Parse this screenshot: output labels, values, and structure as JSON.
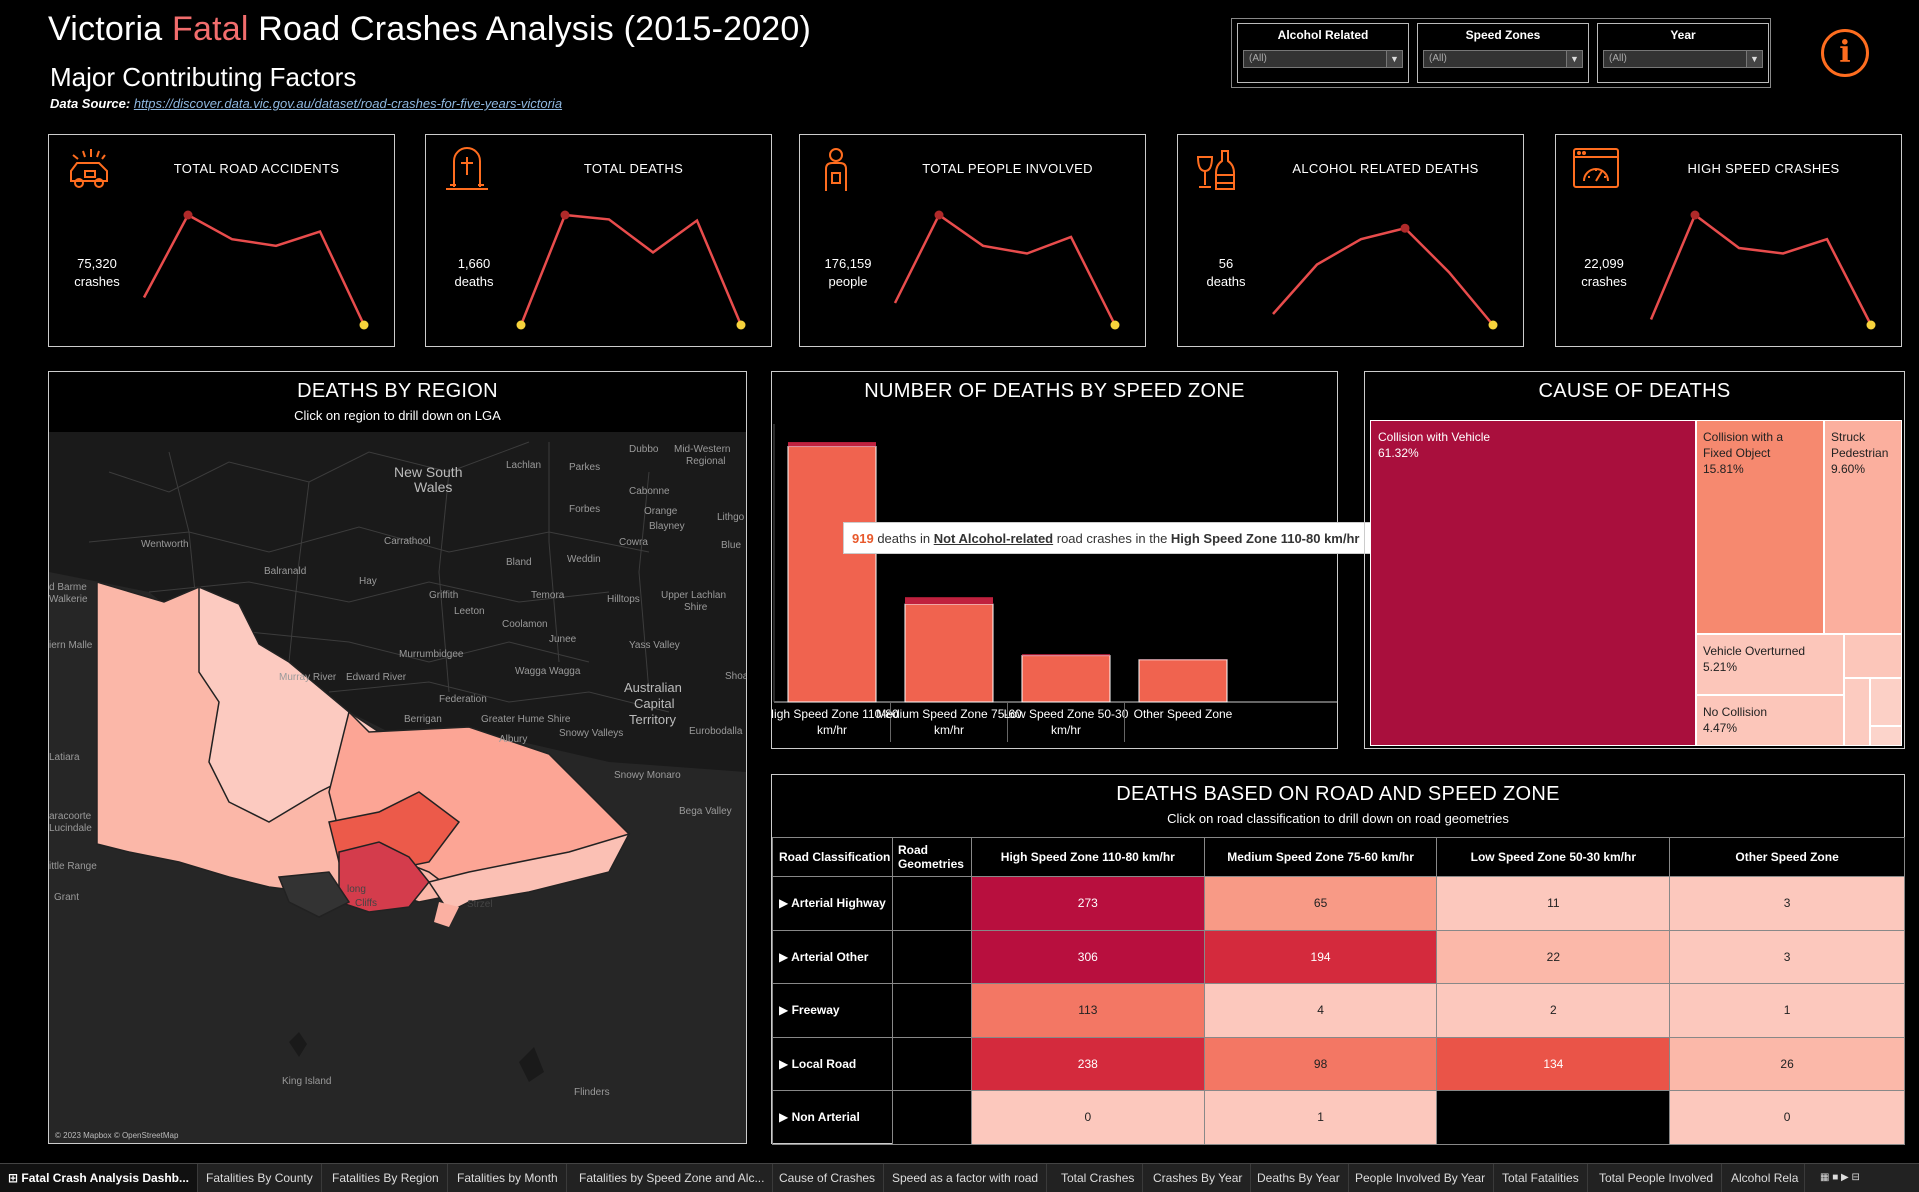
{
  "header": {
    "title_pre": "Victoria ",
    "title_accent": "Fatal",
    "title_post": " Road Crashes Analysis (2015-2020)",
    "subtitle": "Major Contributing Factors",
    "source_label": "Data Source:",
    "source_url": "https://discover.data.vic.gov.au/dataset/road-crashes-for-five-years-victoria"
  },
  "filters": [
    {
      "label": "Alcohol Related",
      "value": "(All)"
    },
    {
      "label": "Speed Zones",
      "value": "(All)"
    },
    {
      "label": "Year",
      "value": "(All)"
    }
  ],
  "info_icon": "i",
  "colors": {
    "accent": "#ff6d1f",
    "line": "#e84c4c",
    "endpoint": "#f7d33c",
    "dark_red": "#a90f3d",
    "mid_red": "#f0634f",
    "light_red": "#fbb0a2"
  },
  "kpis": [
    {
      "title": "TOTAL ROAD ACCIDENTS",
      "value": "75,320",
      "unit": "crashes",
      "icon": "car-crash-icon",
      "trend": [
        0.25,
        1.0,
        0.78,
        0.72,
        0.85,
        0.0
      ]
    },
    {
      "title": "TOTAL DEATHS",
      "value": "1,660",
      "unit": "deaths",
      "icon": "grave-icon",
      "trend": [
        0.0,
        1.0,
        0.96,
        0.66,
        0.95,
        0.0
      ]
    },
    {
      "title": "TOTAL PEOPLE INVOLVED",
      "value": "176,159",
      "unit": "people",
      "icon": "person-icon",
      "trend": [
        0.2,
        1.0,
        0.72,
        0.65,
        0.8,
        0.0
      ]
    },
    {
      "title": "ALCOHOL RELATED DEATHS",
      "value": "56",
      "unit": "deaths",
      "icon": "alcohol-icon",
      "trend": [
        0.1,
        0.55,
        0.78,
        0.88,
        0.48,
        0.0
      ]
    },
    {
      "title": "HIGH SPEED CRASHES",
      "value": "22,099",
      "unit": "crashes",
      "icon": "speedometer-icon",
      "trend": [
        0.05,
        1.0,
        0.7,
        0.65,
        0.78,
        0.0
      ]
    }
  ],
  "map": {
    "title": "DEATHS BY REGION",
    "subtitle": "Click on region to drill down on LGA",
    "credit": "© 2023 Mapbox © OpenStreetMap",
    "labels": [
      {
        "text": "New South"
      },
      {
        "text": "Wales"
      },
      {
        "text": "Dubbo"
      },
      {
        "text": "Mid-Western"
      },
      {
        "text": "Regional"
      },
      {
        "text": "Lachlan"
      },
      {
        "text": "Parkes"
      },
      {
        "text": "Cabonne"
      },
      {
        "text": "Orange"
      },
      {
        "text": "Forbes"
      },
      {
        "text": "Blayney"
      },
      {
        "text": "Cowra"
      },
      {
        "text": "Wentworth"
      },
      {
        "text": "Carrathool"
      },
      {
        "text": "Bland"
      },
      {
        "text": "Weddin"
      },
      {
        "text": "Balranald"
      },
      {
        "text": "Hay"
      },
      {
        "text": "Griffith"
      },
      {
        "text": "Leeton"
      },
      {
        "text": "Temora"
      },
      {
        "text": "Hilltops"
      },
      {
        "text": "Upper Lachlan"
      },
      {
        "text": "Shire"
      },
      {
        "text": "Coolamon"
      },
      {
        "text": "Junee"
      },
      {
        "text": "Yass Valley"
      },
      {
        "text": "Murrumbidgee"
      },
      {
        "text": "Wagga Wagga"
      },
      {
        "text": "Murray River"
      },
      {
        "text": "Edward River"
      },
      {
        "text": "Australian"
      },
      {
        "text": "Capital"
      },
      {
        "text": "Territory"
      },
      {
        "text": "Federation"
      },
      {
        "text": "Berrigan"
      },
      {
        "text": "Greater Hume Shire"
      },
      {
        "text": "Snowy Valleys"
      },
      {
        "text": "Albury"
      },
      {
        "text": "Eurobodalla"
      },
      {
        "text": "Snowy Monaro"
      },
      {
        "text": "Bega Valley"
      },
      {
        "text": "King Island"
      },
      {
        "text": "Flinders"
      },
      {
        "text": "Grant"
      },
      {
        "text": "Latiara"
      },
      {
        "text": "Lithgo"
      },
      {
        "text": "Blue"
      },
      {
        "text": "Shoa"
      },
      {
        "text": "iern Malle"
      },
      {
        "text": "d Barme"
      },
      {
        "text": "Walkerie"
      },
      {
        "text": "aracoorte"
      },
      {
        "text": "Lucindale"
      },
      {
        "text": "ittle Range"
      },
      {
        "text": "long"
      },
      {
        "text": "Cliffs"
      },
      {
        "text": "Strzel"
      }
    ]
  },
  "speed_zone_chart": {
    "title": "NUMBER OF DEATHS BY SPEED ZONE",
    "tooltip": {
      "value": "919",
      "text_1": " deaths in ",
      "filter": "Not Alcohol-related",
      "text_2": " road crashes in the ",
      "zone": "High Speed Zone 110-80 km/hr"
    }
  },
  "chart_data": {
    "type": "bar",
    "title": "NUMBER OF DEATHS BY SPEED ZONE",
    "categories": [
      "High Speed Zone 110-80 km/hr",
      "Medium Speed Zone 75-60 km/hr",
      "Low Speed Zone 50-30 km/hr",
      "Other Speed Zone"
    ],
    "series": [
      {
        "name": "Not Alcohol-related",
        "values": [
          919,
          352,
          167,
          152
        ]
      },
      {
        "name": "Alcohol-related",
        "values": [
          16,
          25,
          5,
          1
        ]
      }
    ],
    "ylim": [
      0,
      1000
    ],
    "xlabel": "",
    "ylabel": ""
  },
  "cause_of_deaths": {
    "title": "CAUSE OF DEATHS",
    "items": [
      {
        "name": "Collision with Vehicle",
        "pct": "61.32%",
        "value": 61.32
      },
      {
        "name": "Collision with a Fixed Object",
        "pct": "15.81%",
        "value": 15.81
      },
      {
        "name": "Struck Pedestrian",
        "pct": "9.60%",
        "value": 9.6
      },
      {
        "name": "Vehicle Overturned",
        "pct": "5.21%",
        "value": 5.21
      },
      {
        "name": "No Collision",
        "pct": "4.47%",
        "value": 4.47
      }
    ]
  },
  "road_table": {
    "title": "DEATHS BASED ON ROAD AND SPEED ZONE",
    "subtitle": "Click on road classification to drill down on road geometries",
    "headers": [
      "Road Classification",
      "Road Geometries",
      "High Speed Zone 110-80 km/hr",
      "Medium Speed Zone 75-60 km/hr",
      "Low Speed Zone 50-30 km/hr",
      "Other Speed Zone"
    ],
    "rows": [
      {
        "name": "Arterial Highway",
        "values": [
          "273",
          "65",
          "11",
          "3"
        ]
      },
      {
        "name": "Arterial Other",
        "values": [
          "306",
          "194",
          "22",
          "3"
        ]
      },
      {
        "name": "Freeway",
        "values": [
          "113",
          "4",
          "2",
          "1"
        ]
      },
      {
        "name": "Local Road",
        "values": [
          "238",
          "98",
          "134",
          "26"
        ]
      },
      {
        "name": "Non Arterial",
        "values": [
          "0",
          "1",
          "",
          "0"
        ]
      }
    ]
  },
  "tabs": [
    "Fatal Crash Analysis Dashb...",
    "Fatalities By County",
    "Fatalities By Region",
    "Fatalities by Month",
    "Fatalities by Speed Zone and Alc...",
    "Cause of Crashes",
    "Speed as a factor with road",
    "Total Crashes",
    "Crashes By Year",
    "Deaths By Year",
    "People Involved By Year",
    "Total Fatalities",
    "Total People Involved",
    "Alcohol Rela"
  ]
}
